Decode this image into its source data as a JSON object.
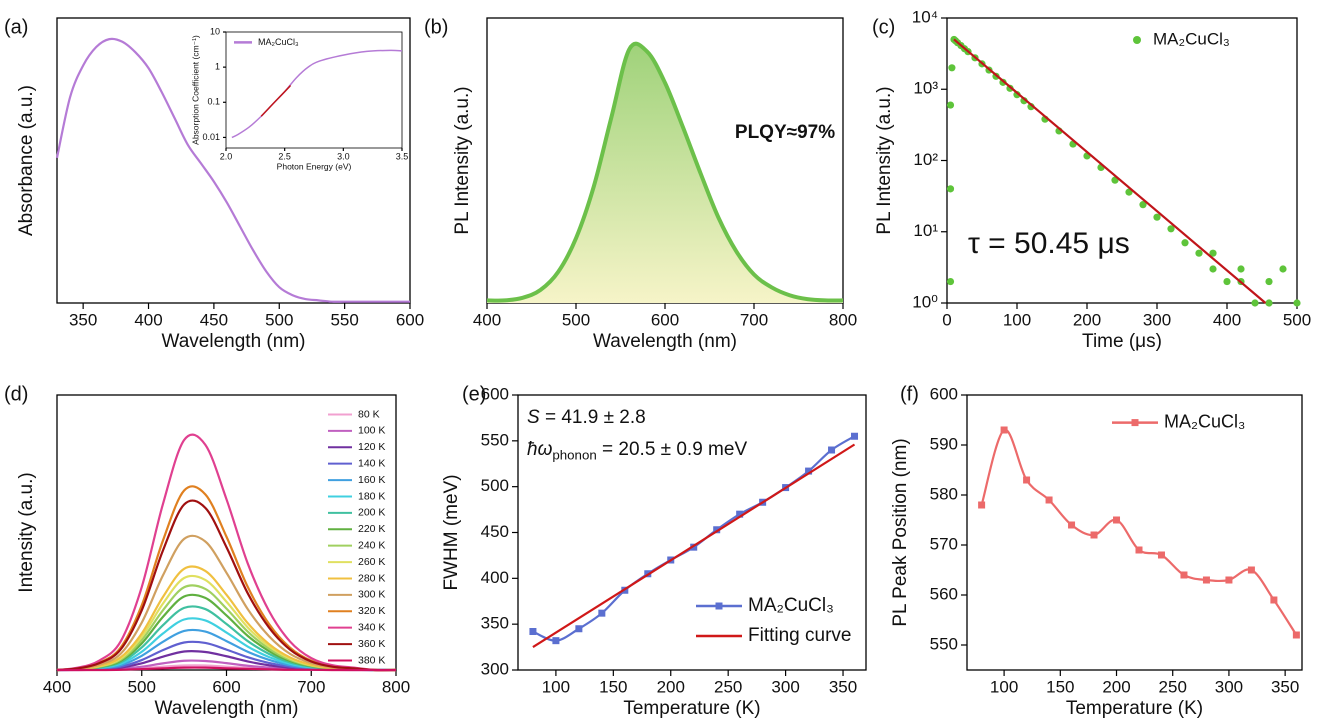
{
  "chart_data": [
    {
      "type": "line",
      "panel_label": "(a)",
      "xlabel": "Wavelength (nm)",
      "ylabel": "Absorbance (a.u.)",
      "xlim": [
        330,
        600
      ],
      "xticks": [
        350,
        400,
        450,
        500,
        550,
        600
      ],
      "ylim": [
        0,
        1.08
      ],
      "series": [
        {
          "color": "#b57bd6",
          "x": [
            330,
            340,
            350,
            360,
            370,
            380,
            390,
            400,
            410,
            420,
            430,
            440,
            450,
            460,
            470,
            480,
            490,
            500,
            510,
            520,
            530,
            540,
            550,
            560,
            570,
            580,
            590,
            600
          ],
          "values": [
            0.55,
            0.78,
            0.9,
            0.97,
            1.0,
            0.99,
            0.95,
            0.89,
            0.8,
            0.7,
            0.6,
            0.53,
            0.46,
            0.38,
            0.29,
            0.2,
            0.12,
            0.06,
            0.03,
            0.015,
            0.01,
            0.005,
            0.005,
            0.005,
            0.005,
            0.005,
            0.005,
            0.005
          ]
        }
      ]
    },
    {
      "type": "line",
      "xlabel": "Photon Energy (eV)",
      "ylabel": "Absorption Coefficient (cm⁻¹)",
      "ylog": true,
      "legend": "upper left",
      "xlim": [
        2.0,
        3.5
      ],
      "xticks": [
        {
          "value": 2,
          "label": "2.0"
        },
        2.5,
        {
          "value": 3,
          "label": "3.0"
        },
        3.5
      ],
      "ylim": [
        0.005,
        10
      ],
      "yticks": [
        0.01,
        0.1,
        1,
        10
      ],
      "series": [
        {
          "name": "MA₂CuCl₃",
          "color": "#b57bd6",
          "x": [
            2.05,
            2.1,
            2.2,
            2.3,
            2.4,
            2.5,
            2.6,
            2.7,
            2.8,
            3.0,
            3.2,
            3.4,
            3.5
          ],
          "values": [
            0.01,
            0.012,
            0.02,
            0.04,
            0.09,
            0.2,
            0.5,
            1.0,
            1.5,
            2.2,
            2.8,
            3.0,
            2.9
          ]
        },
        {
          "color": "#c0151a",
          "x": [
            2.3,
            2.4,
            2.5,
            2.55
          ],
          "values": [
            0.04,
            0.09,
            0.2,
            0.3
          ]
        }
      ]
    },
    {
      "type": "area",
      "panel_label": "(b)",
      "xlabel": "Wavelength (nm)",
      "ylabel": "PL Intensity (a.u.)",
      "annotations": [
        {
          "parts": [
            {
              "text": "PLQY≈97%"
            }
          ]
        }
      ],
      "xlim": [
        400,
        800
      ],
      "xticks": [
        400,
        500,
        600,
        700,
        800
      ],
      "ylim": [
        0,
        1.1
      ],
      "series": [
        {
          "color": "#6cc04a",
          "x": [
            400,
            420,
            440,
            460,
            480,
            500,
            520,
            540,
            560,
            580,
            600,
            620,
            640,
            660,
            680,
            700,
            720,
            740,
            760,
            780,
            800
          ],
          "values": [
            0.01,
            0.01,
            0.02,
            0.05,
            0.12,
            0.25,
            0.45,
            0.72,
            0.98,
            0.97,
            0.85,
            0.68,
            0.5,
            0.33,
            0.2,
            0.11,
            0.06,
            0.03,
            0.015,
            0.01,
            0.01
          ]
        }
      ]
    },
    {
      "type": "scatter",
      "panel_label": "(c)",
      "xlabel": "Time (μs)",
      "ylabel": "PL Intensity (a.u.)",
      "ylog": true,
      "legend": "upper right",
      "annotations": [
        {
          "parts": [
            {
              "text": "τ = 50.45 μs"
            }
          ]
        }
      ],
      "xlim": [
        0,
        500
      ],
      "xticks": [
        0,
        100,
        200,
        300,
        400,
        500
      ],
      "ylim": [
        1,
        10000
      ],
      "yticks": [
        {
          "value": 1,
          "label": "10⁰"
        },
        {
          "value": 10,
          "label": "10¹"
        },
        {
          "value": 100,
          "label": "10²"
        },
        {
          "value": 1000,
          "label": "10³"
        },
        {
          "value": 10000,
          "label": "10⁴"
        }
      ],
      "series": [
        {
          "name": "MA₂CuCl₃",
          "color": "#5ec43a",
          "kind": "scatter",
          "x": [
            5,
            5,
            5,
            7,
            10,
            12,
            15,
            20,
            25,
            30,
            40,
            50,
            60,
            70,
            80,
            90,
            100,
            110,
            120,
            140,
            160,
            180,
            200,
            220,
            240,
            260,
            280,
            300,
            320,
            340,
            360,
            380,
            400,
            420,
            440,
            460,
            480,
            500,
            380,
            420,
            460
          ],
          "values": [
            2,
            40,
            600,
            2000,
            5000,
            4800,
            4500,
            4100,
            3700,
            3370,
            2760,
            2270,
            1860,
            1520,
            1250,
            1030,
            840,
            690,
            570,
            380,
            260,
            170,
            116,
            80,
            53,
            36,
            24,
            16,
            11,
            7,
            5,
            3,
            2,
            2,
            1,
            2,
            3,
            1,
            5,
            3,
            1
          ]
        },
        {
          "color": "#c0151a",
          "kind": "line",
          "x": [
            10,
            455
          ],
          "values": [
            5000,
            1
          ]
        }
      ]
    },
    {
      "type": "line",
      "panel_label": "(d)",
      "xlabel": "Wavelength (nm)",
      "ylabel": "Intensity (a.u.)",
      "legend": "upper right",
      "xlim": [
        400,
        800
      ],
      "xticks": [
        400,
        500,
        600,
        700,
        800
      ],
      "ylim": [
        0,
        1.16
      ],
      "x": [
        400,
        425,
        450,
        475,
        500,
        525,
        550,
        575,
        600,
        625,
        650,
        675,
        700,
        725,
        750,
        775,
        800
      ],
      "series": [
        {
          "name": "80 K",
          "color": "#f2a0d0",
          "values": [
            0,
            0,
            0.001,
            0.002,
            0.007,
            0.014,
            0.019,
            0.019,
            0.014,
            0.009,
            0.005,
            0.002,
            0.001,
            0,
            0,
            0,
            0
          ]
        },
        {
          "name": "100 K",
          "color": "#c060c0",
          "values": [
            0,
            0,
            0.002,
            0.005,
            0.014,
            0.028,
            0.039,
            0.038,
            0.029,
            0.018,
            0.01,
            0.005,
            0.002,
            0.001,
            0,
            0,
            0
          ]
        },
        {
          "name": "120 K",
          "color": "#7030a0",
          "values": [
            0,
            0.001,
            0.003,
            0.01,
            0.028,
            0.056,
            0.078,
            0.076,
            0.058,
            0.036,
            0.02,
            0.01,
            0.004,
            0.002,
            0.001,
            0,
            0
          ]
        },
        {
          "name": "140 K",
          "color": "#6060d0",
          "values": [
            0,
            0.001,
            0.005,
            0.014,
            0.042,
            0.084,
            0.116,
            0.114,
            0.086,
            0.054,
            0.03,
            0.014,
            0.006,
            0.002,
            0.001,
            0,
            0
          ]
        },
        {
          "name": "160 K",
          "color": "#40a0e0",
          "values": [
            0,
            0.002,
            0.007,
            0.02,
            0.06,
            0.119,
            0.165,
            0.162,
            0.122,
            0.077,
            0.043,
            0.02,
            0.009,
            0.003,
            0.002,
            0,
            0
          ]
        },
        {
          "name": "180 K",
          "color": "#40d0e0",
          "values": [
            0,
            0.002,
            0.009,
            0.026,
            0.077,
            0.154,
            0.213,
            0.209,
            0.158,
            0.099,
            0.055,
            0.026,
            0.011,
            0.004,
            0.002,
            0,
            0
          ]
        },
        {
          "name": "200 K",
          "color": "#40c0a0",
          "values": [
            0,
            0.003,
            0.011,
            0.032,
            0.095,
            0.189,
            0.262,
            0.257,
            0.194,
            0.122,
            0.068,
            0.032,
            0.014,
            0.005,
            0.003,
            0,
            0
          ]
        },
        {
          "name": "220 K",
          "color": "#60b040",
          "values": [
            0,
            0.003,
            0.013,
            0.038,
            0.112,
            0.224,
            0.31,
            0.304,
            0.23,
            0.144,
            0.08,
            0.038,
            0.016,
            0.006,
            0.003,
            0,
            0
          ]
        },
        {
          "name": "240 K",
          "color": "#a0d060",
          "values": [
            0,
            0.004,
            0.014,
            0.043,
            0.126,
            0.252,
            0.349,
            0.342,
            0.259,
            0.162,
            0.09,
            0.043,
            0.018,
            0.007,
            0.004,
            0,
            0
          ]
        },
        {
          "name": "260 K",
          "color": "#e0e060",
          "values": [
            0,
            0.004,
            0.016,
            0.048,
            0.14,
            0.28,
            0.388,
            0.38,
            0.288,
            0.18,
            0.1,
            0.048,
            0.02,
            0.008,
            0.004,
            0,
            0
          ]
        },
        {
          "name": "280 K",
          "color": "#f0c040",
          "values": [
            0,
            0.004,
            0.018,
            0.053,
            0.154,
            0.308,
            0.427,
            0.418,
            0.317,
            0.198,
            0.11,
            0.053,
            0.022,
            0.009,
            0.004,
            0,
            0
          ]
        },
        {
          "name": "300 K",
          "color": "#d0a060",
          "values": [
            0,
            0.006,
            0.023,
            0.068,
            0.2,
            0.399,
            0.553,
            0.542,
            0.41,
            0.257,
            0.143,
            0.068,
            0.029,
            0.011,
            0.006,
            0,
            0
          ]
        },
        {
          "name": "320 K",
          "color": "#e08020",
          "values": [
            0,
            0.008,
            0.031,
            0.094,
            0.273,
            0.546,
            0.757,
            0.741,
            0.562,
            0.351,
            0.195,
            0.094,
            0.039,
            0.016,
            0.008,
            0,
            0
          ]
        },
        {
          "name": "340 K",
          "color": "#e04090",
          "values": [
            0,
            0.01,
            0.04,
            0.12,
            0.35,
            0.7,
            0.97,
            0.95,
            0.72,
            0.45,
            0.25,
            0.12,
            0.05,
            0.02,
            0.01,
            0,
            0
          ]
        },
        {
          "name": "360 K",
          "color": "#a01010",
          "values": [
            0,
            0.007,
            0.029,
            0.086,
            0.252,
            0.504,
            0.698,
            0.684,
            0.518,
            0.324,
            0.18,
            0.086,
            0.036,
            0.014,
            0.007,
            0,
            0
          ]
        },
        {
          "name": "380 K",
          "color": "#d01060",
          "values": [
            0,
            0,
            0,
            0.001,
            0.004,
            0.007,
            0.01,
            0.01,
            0.007,
            0.005,
            0.003,
            0.001,
            0.001,
            0,
            0,
            0,
            0
          ]
        }
      ]
    },
    {
      "type": "line",
      "panel_label": "(e)",
      "xlabel": "Temperature (K)",
      "ylabel": "FWHM (meV)",
      "legend": "lower right",
      "annotations": [
        {
          "parts": [
            {
              "text": "S",
              "italic": true
            },
            {
              "text": " = 41.9 ± 2.8"
            }
          ]
        },
        {
          "parts": [
            {
              "text": "ħω",
              "italic": true
            },
            {
              "text": "phonon",
              "sub": true
            },
            {
              "text": " = 20.5 ± 0.9 meV"
            }
          ]
        }
      ],
      "xlim": [
        67,
        370
      ],
      "xticks": [
        100,
        150,
        200,
        250,
        300,
        350
      ],
      "ylim": [
        300,
        600
      ],
      "yticks": [
        300,
        350,
        400,
        450,
        500,
        550,
        600
      ],
      "series": [
        {
          "name": "MA₂CuCl₃",
          "color": "#5b6fd0",
          "marker": "square",
          "x": [
            80,
            100,
            120,
            140,
            160,
            180,
            200,
            220,
            240,
            260,
            280,
            300,
            320,
            340,
            360
          ],
          "values": [
            342,
            332,
            345,
            362,
            387,
            405,
            420,
            434,
            453,
            470,
            483,
            499,
            517,
            540,
            555
          ]
        },
        {
          "name": "Fitting curve",
          "color": "#d01818",
          "x": [
            80,
            360
          ],
          "values": [
            325,
            546
          ]
        }
      ]
    },
    {
      "type": "line",
      "panel_label": "(f)",
      "xlabel": "Temperature (K)",
      "ylabel": "PL Peak Position (nm)",
      "legend": "upper right",
      "xlim": [
        67,
        365
      ],
      "xticks": [
        100,
        150,
        200,
        250,
        300,
        350
      ],
      "ylim": [
        545,
        600
      ],
      "yticks": [
        550,
        560,
        570,
        580,
        590,
        600
      ],
      "series": [
        {
          "name": "MA₂CuCl₃",
          "color": "#ec6a6a",
          "marker": "square",
          "x": [
            80,
            100,
            120,
            140,
            160,
            180,
            200,
            220,
            240,
            260,
            280,
            300,
            320,
            340,
            360
          ],
          "values": [
            578,
            593,
            583,
            579,
            574,
            572,
            575,
            569,
            568,
            564,
            563,
            563,
            565,
            559,
            552
          ]
        }
      ]
    }
  ]
}
